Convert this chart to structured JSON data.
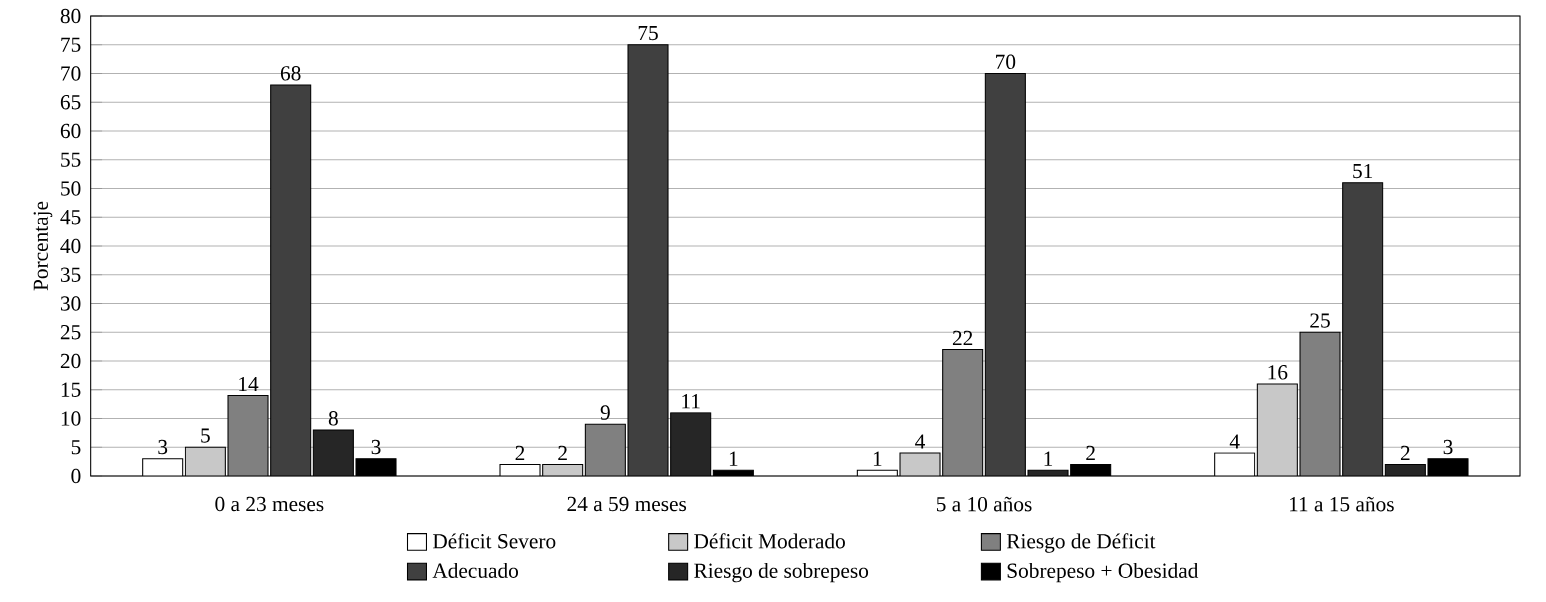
{
  "chart_data": {
    "type": "bar",
    "ylabel": "Porcentaje",
    "categories": [
      "0 a 23 meses",
      "24 a 59 meses",
      "5 a 10 años",
      "11 a 15 años"
    ],
    "series": [
      {
        "name": "Déficit Severo",
        "color": "#ffffff",
        "values": [
          3,
          2,
          1,
          4
        ]
      },
      {
        "name": "Déficit Moderado",
        "color": "#c8c8c8",
        "values": [
          5,
          2,
          4,
          16
        ]
      },
      {
        "name": "Riesgo de Déficit",
        "color": "#808080",
        "values": [
          14,
          9,
          22,
          25
        ]
      },
      {
        "name": "Adecuado",
        "color": "#404040",
        "values": [
          68,
          75,
          70,
          51
        ]
      },
      {
        "name": "Riesgo de sobrepeso",
        "color": "#262626",
        "values": [
          8,
          11,
          1,
          2
        ]
      },
      {
        "name": "Sobrepeso + Obesidad",
        "color": "#000000",
        "values": [
          3,
          1,
          2,
          3
        ]
      }
    ],
    "ylim": [
      0,
      80
    ],
    "yticks": [
      0,
      5,
      10,
      15,
      20,
      25,
      30,
      35,
      40,
      45,
      50,
      55,
      60,
      65,
      70,
      75,
      80
    ],
    "grid": "y",
    "legend": "bottom",
    "data_labels": true
  }
}
